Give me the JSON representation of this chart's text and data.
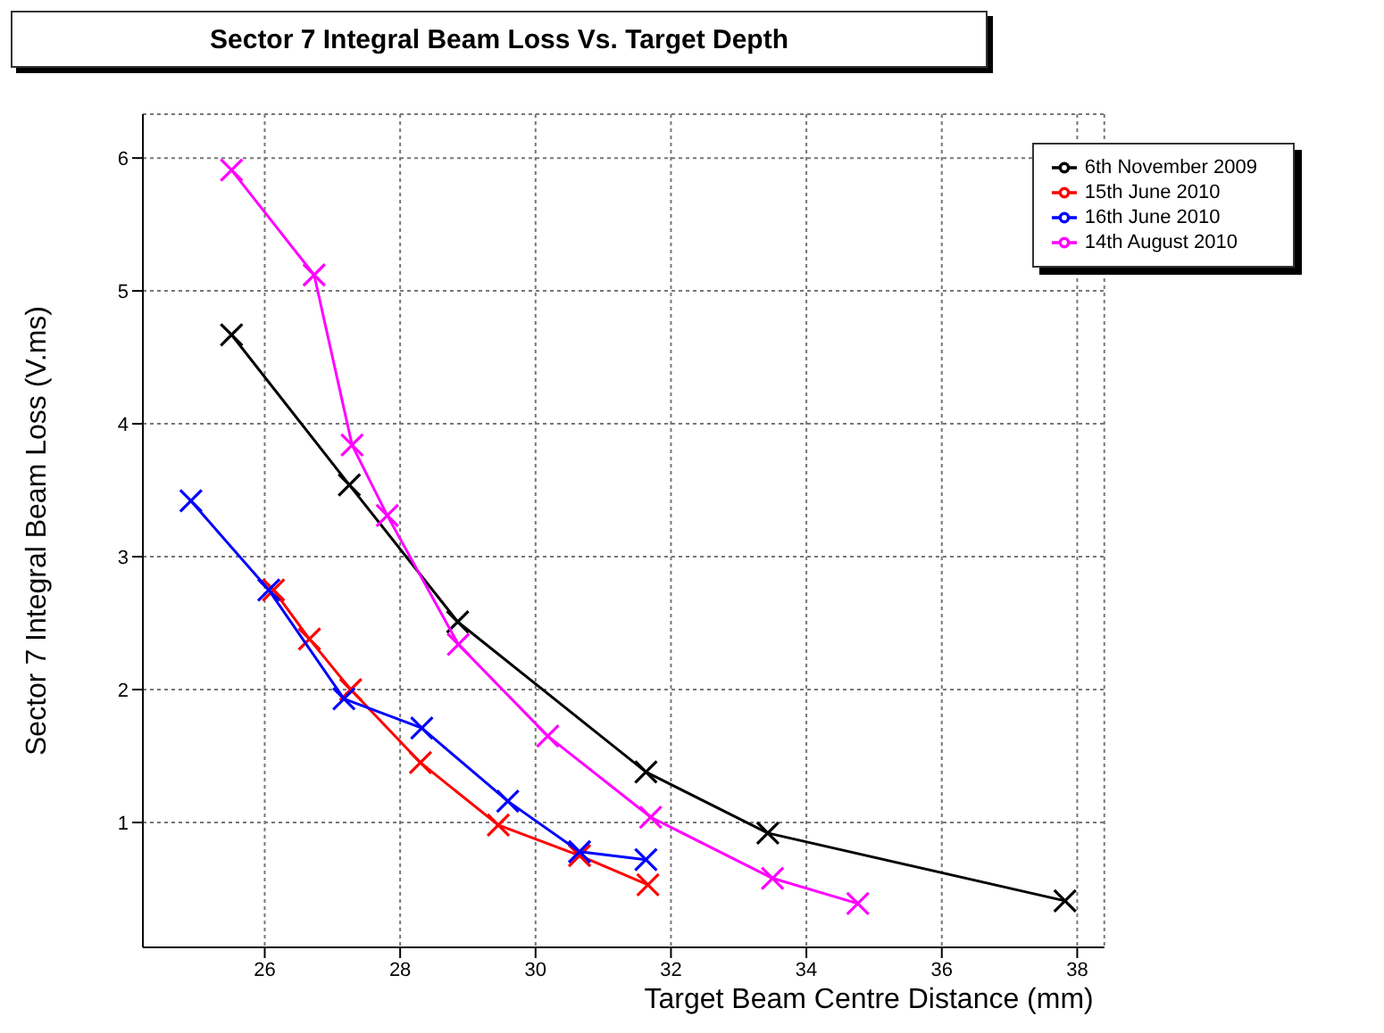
{
  "chart_data": {
    "type": "line",
    "title": "Sector 7 Integral Beam Loss Vs. Target Depth",
    "xlabel": "Target Beam Centre Distance (mm)",
    "ylabel": "Sector 7 Integral Beam Loss (V.ms)",
    "xlim": [
      24.2,
      38.4
    ],
    "xticks": [
      26,
      28,
      30,
      32,
      34,
      36,
      38
    ],
    "ylim": [
      0.06,
      6.33
    ],
    "yticks": [
      1,
      2,
      3,
      4,
      5,
      6
    ],
    "grid": true,
    "legend": "top right",
    "marker": "cross",
    "line_style": "solid",
    "series": [
      {
        "name": "6th November 2009",
        "color": "#000000",
        "x": [
          25.51,
          27.25,
          28.85,
          31.63,
          33.43,
          37.82
        ],
        "values": [
          4.67,
          3.54,
          2.51,
          1.38,
          0.92,
          0.41
        ]
      },
      {
        "name": "15th June 2010",
        "color": "#ff0000",
        "x": [
          26.13,
          26.66,
          27.27,
          28.3,
          29.45,
          30.65,
          31.66
        ],
        "values": [
          2.75,
          2.38,
          2.0,
          1.45,
          0.98,
          0.75,
          0.53
        ]
      },
      {
        "name": "16th June 2010",
        "color": "#0000ff",
        "x": [
          24.91,
          26.06,
          27.17,
          28.32,
          29.59,
          30.65,
          31.63
        ],
        "values": [
          3.42,
          2.75,
          1.93,
          1.71,
          1.16,
          0.78,
          0.72
        ]
      },
      {
        "name": "14th August 2010",
        "color": "#ff00ff",
        "x": [
          25.51,
          26.73,
          27.29,
          27.81,
          28.86,
          30.18,
          31.7,
          33.5,
          34.76
        ],
        "values": [
          5.91,
          5.12,
          3.84,
          3.31,
          2.34,
          1.65,
          1.04,
          0.58,
          0.39
        ]
      }
    ]
  }
}
